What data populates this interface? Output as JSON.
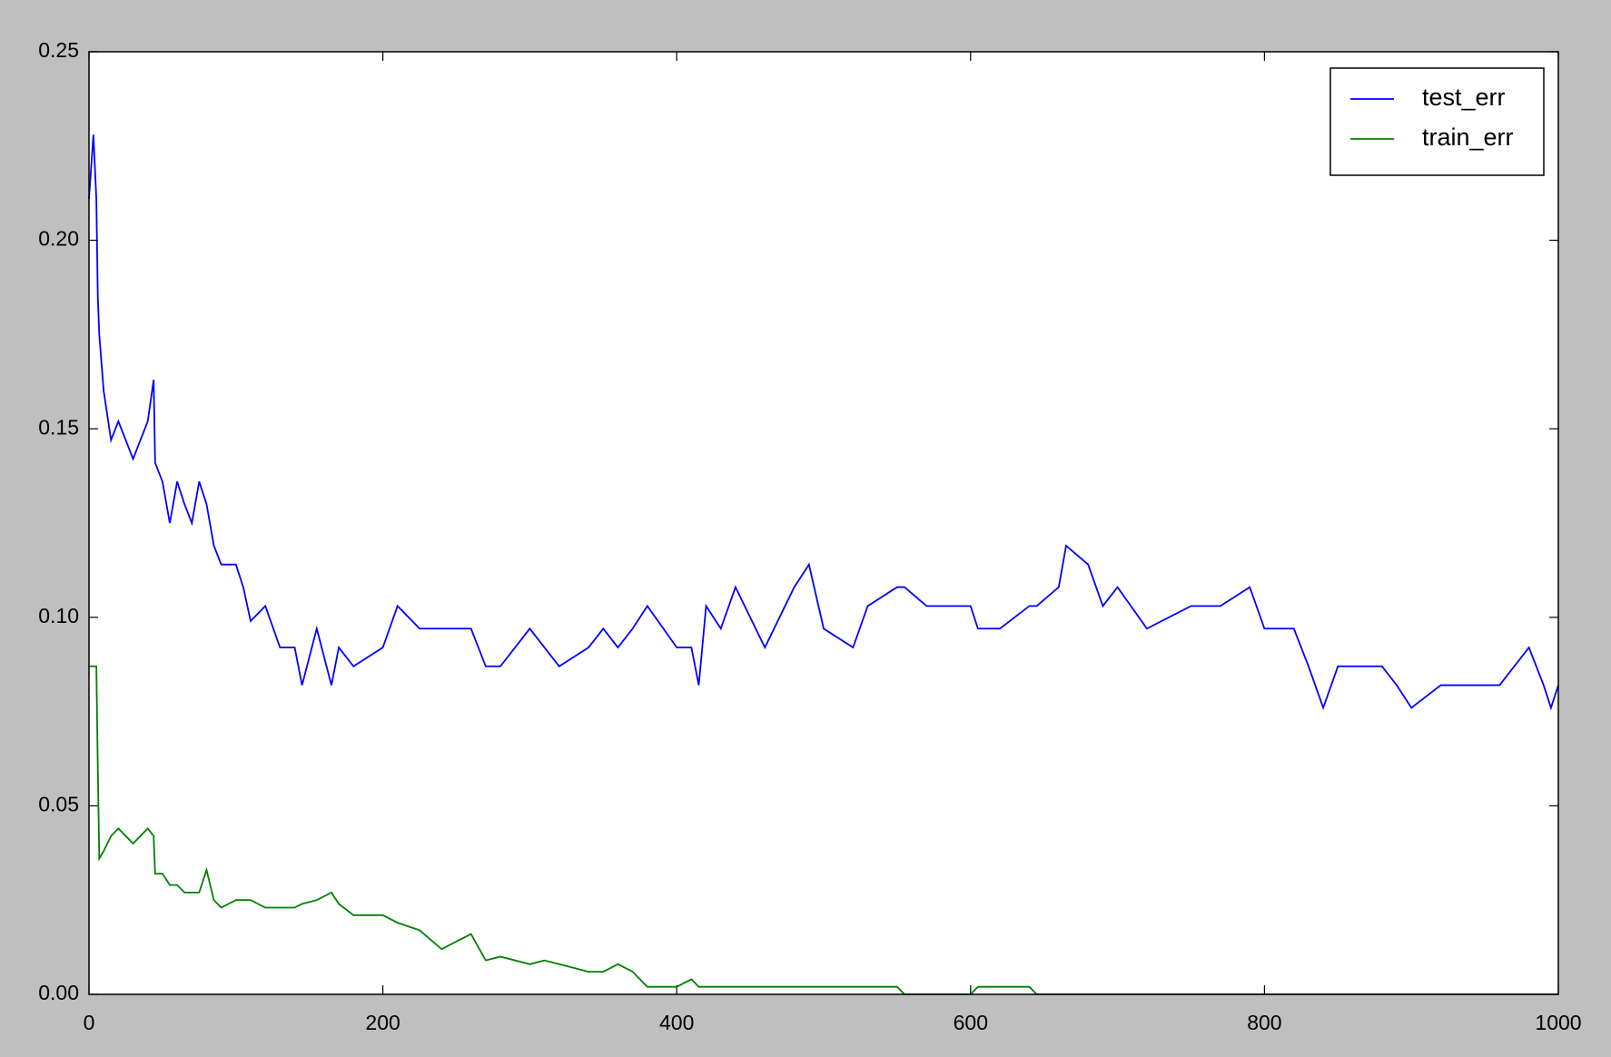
{
  "chart_data": {
    "type": "line",
    "x": [
      0,
      3,
      5,
      6,
      7,
      10,
      15,
      20,
      30,
      40,
      44,
      45,
      50,
      55,
      60,
      65,
      70,
      75,
      80,
      85,
      90,
      100,
      105,
      110,
      120,
      130,
      140,
      145,
      155,
      165,
      170,
      180,
      200,
      210,
      225,
      240,
      260,
      270,
      280,
      300,
      310,
      320,
      340,
      350,
      360,
      370,
      380,
      400,
      410,
      415,
      420,
      430,
      440,
      460,
      480,
      490,
      500,
      520,
      530,
      550,
      555,
      570,
      600,
      605,
      620,
      640,
      645,
      660,
      665,
      680,
      690,
      700,
      720,
      750,
      770,
      790,
      800,
      820,
      830,
      840,
      850,
      880,
      890,
      900,
      920,
      960,
      970,
      980,
      990,
      995,
      1000
    ],
    "series": [
      {
        "name": "test_err",
        "color": "#0000ff",
        "values": [
          0.211,
          0.228,
          0.211,
          0.185,
          0.175,
          0.16,
          0.147,
          0.152,
          0.142,
          0.152,
          0.163,
          0.141,
          0.136,
          0.125,
          0.136,
          0.13,
          0.125,
          0.136,
          0.13,
          0.119,
          0.114,
          0.114,
          0.108,
          0.099,
          0.103,
          0.092,
          0.092,
          0.082,
          0.097,
          0.082,
          0.092,
          0.087,
          0.092,
          0.103,
          0.097,
          0.097,
          0.097,
          0.087,
          0.087,
          0.097,
          0.092,
          0.087,
          0.092,
          0.097,
          0.092,
          0.097,
          0.103,
          0.092,
          0.092,
          0.082,
          0.103,
          0.097,
          0.108,
          0.092,
          0.108,
          0.114,
          0.097,
          0.092,
          0.103,
          0.108,
          0.108,
          0.103,
          0.103,
          0.097,
          0.097,
          0.103,
          0.103,
          0.108,
          0.119,
          0.114,
          0.103,
          0.108,
          0.097,
          0.103,
          0.103,
          0.108,
          0.097,
          0.097,
          0.087,
          0.076,
          0.087,
          0.087,
          0.082,
          0.076,
          0.082,
          0.082,
          0.087,
          0.092,
          0.082,
          0.076,
          0.082
        ]
      },
      {
        "name": "train_err",
        "color": "#008000",
        "values": [
          0.087,
          0.087,
          0.087,
          0.06,
          0.036,
          0.038,
          0.042,
          0.044,
          0.04,
          0.044,
          0.042,
          0.032,
          0.032,
          0.029,
          0.029,
          0.027,
          0.027,
          0.027,
          0.033,
          0.025,
          0.023,
          0.025,
          0.025,
          0.025,
          0.023,
          0.023,
          0.023,
          0.024,
          0.025,
          0.027,
          0.024,
          0.021,
          0.021,
          0.019,
          0.017,
          0.012,
          0.016,
          0.009,
          0.01,
          0.008,
          0.009,
          0.008,
          0.006,
          0.006,
          0.008,
          0.006,
          0.002,
          0.002,
          0.004,
          0.002,
          0.002,
          0.002,
          0.002,
          0.002,
          0.002,
          0.002,
          0.002,
          0.002,
          0.002,
          0.002,
          0,
          0,
          0,
          0.002,
          0.002,
          0.002,
          0,
          0,
          0,
          0,
          0,
          0,
          0,
          0,
          0,
          0,
          0,
          0,
          0,
          0,
          0,
          0,
          0,
          0,
          0,
          0,
          0,
          0,
          0,
          0,
          0
        ]
      }
    ],
    "xlim": [
      0,
      1000
    ],
    "xticks": [
      0,
      200,
      400,
      600,
      800,
      1000
    ],
    "ylim": [
      0,
      0.25
    ],
    "yticks": [
      {
        "value": 0,
        "label": "0.00"
      },
      0.05,
      {
        "value": 0.1,
        "label": "0.10"
      },
      0.15,
      {
        "value": 0.2,
        "label": "0.20"
      },
      0.25
    ],
    "legend": "upper right"
  }
}
